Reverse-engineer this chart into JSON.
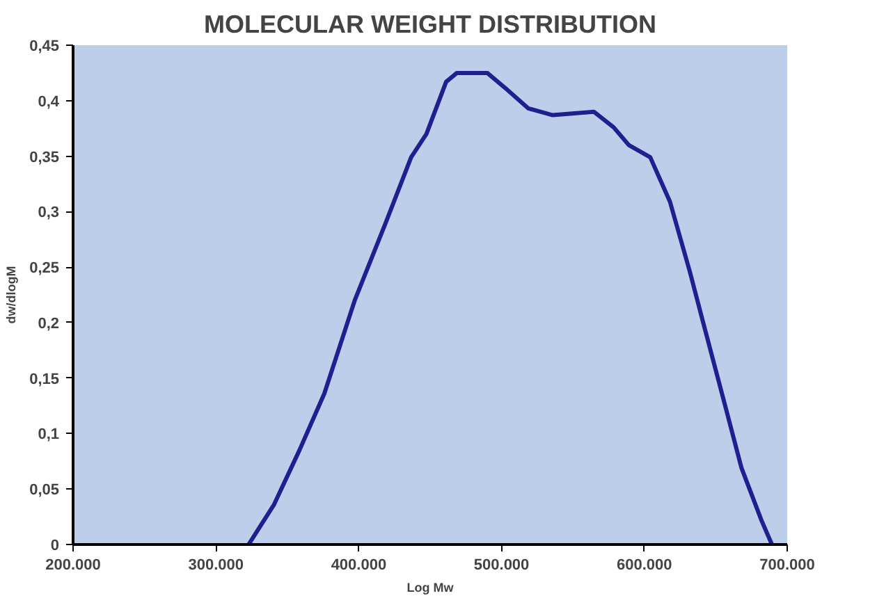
{
  "chart_data": {
    "type": "line",
    "title": "MOLECULAR WEIGHT DISTRIBUTION",
    "xlabel": "Log Mw",
    "ylabel": "dw/dlogM",
    "x": [
      322900,
      340700,
      358500,
      375900,
      397200,
      418600,
      436700,
      447400,
      461200,
      468700,
      490000,
      503800,
      518800,
      535800,
      564600,
      578500,
      589100,
      604100,
      617900,
      631800,
      642400,
      657400,
      668000,
      681900,
      689300
    ],
    "series": [
      {
        "color": "#1f1f8f",
        "values": [
          0,
          0.036,
          0.085,
          0.136,
          0.22,
          0.289,
          0.349,
          0.37,
          0.417,
          0.425,
          0.425,
          0.41,
          0.393,
          0.387,
          0.39,
          0.376,
          0.36,
          0.349,
          0.309,
          0.246,
          0.194,
          0.121,
          0.069,
          0.022,
          0
        ]
      }
    ],
    "xlim": [
      200000,
      700000
    ],
    "xticks": [
      {
        "value": 200000,
        "label": "200.000"
      },
      {
        "value": 300000,
        "label": "300.000"
      },
      {
        "value": 400000,
        "label": "400.000"
      },
      {
        "value": 500000,
        "label": "500.000"
      },
      {
        "value": 600000,
        "label": "600.000"
      },
      {
        "value": 700000,
        "label": "700.000"
      }
    ],
    "ylim": [
      0,
      0.45
    ],
    "yticks": [
      0,
      {
        "value": 0.05,
        "label": "0,05"
      },
      {
        "value": 0.1,
        "label": "0,1"
      },
      {
        "value": 0.15,
        "label": "0,15"
      },
      {
        "value": 0.2,
        "label": "0,2"
      },
      {
        "value": 0.25,
        "label": "0,25"
      },
      {
        "value": 0.3,
        "label": "0,3"
      },
      {
        "value": 0.35,
        "label": "0,35"
      },
      {
        "value": 0.4,
        "label": "0,4"
      },
      {
        "value": 0.45,
        "label": "0,45"
      }
    ],
    "grid": false,
    "line_style": "solid",
    "marker": "none"
  }
}
